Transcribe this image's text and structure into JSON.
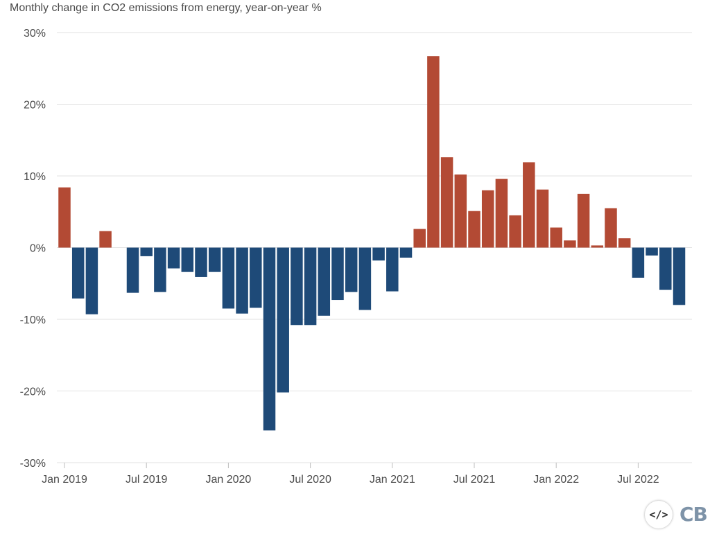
{
  "chart_data": {
    "type": "bar",
    "title": "Monthly change in CO2 emissions from energy, year-on-year %",
    "xlabel": "",
    "ylabel": "",
    "ylim": [
      -30,
      30
    ],
    "yticks": [
      30,
      20,
      10,
      0,
      -10,
      -20,
      -30
    ],
    "ytick_labels": [
      "30%",
      "20%",
      "10%",
      "0%",
      "-10%",
      "-20%",
      "-30%"
    ],
    "xtick_labels": [
      "Jan 2019",
      "Jul 2019",
      "Jan 2020",
      "Jul 2020",
      "Jan 2021",
      "Jul 2021",
      "Jan 2022",
      "Jul 2022"
    ],
    "xtick_months": [
      "2019-01",
      "2019-07",
      "2020-01",
      "2020-07",
      "2021-01",
      "2021-07",
      "2022-01",
      "2022-07"
    ],
    "categories": [
      "2019-01",
      "2019-02",
      "2019-03",
      "2019-04",
      "2019-05",
      "2019-06",
      "2019-07",
      "2019-08",
      "2019-09",
      "2019-10",
      "2019-11",
      "2019-12",
      "2020-01",
      "2020-02",
      "2020-03",
      "2020-04",
      "2020-05",
      "2020-06",
      "2020-07",
      "2020-08",
      "2020-09",
      "2020-10",
      "2020-11",
      "2020-12",
      "2021-01",
      "2021-02",
      "2021-03",
      "2021-04",
      "2021-05",
      "2021-06",
      "2021-07",
      "2021-08",
      "2021-09",
      "2021-10",
      "2021-11",
      "2021-12",
      "2022-01",
      "2022-02",
      "2022-03",
      "2022-04",
      "2022-05",
      "2022-06",
      "2022-07",
      "2022-08",
      "2022-09",
      "2022-10"
    ],
    "values": [
      8.4,
      -7.1,
      -9.3,
      2.3,
      0.0,
      -6.3,
      -1.2,
      -6.2,
      -2.9,
      -3.4,
      -4.1,
      -3.4,
      -8.5,
      -9.2,
      -8.4,
      -25.5,
      -20.2,
      -10.8,
      -10.8,
      -9.5,
      -7.3,
      -6.2,
      -8.7,
      -1.8,
      -6.1,
      -1.4,
      2.6,
      26.7,
      12.6,
      10.2,
      5.1,
      8.0,
      9.6,
      4.5,
      11.9,
      8.1,
      2.8,
      1.0,
      7.5,
      0.3,
      5.5,
      1.3,
      -4.2,
      -1.1,
      -5.9,
      -8.0
    ],
    "grid": true,
    "colors": {
      "positive": "#b34a34",
      "negative": "#1e4a78",
      "grid": "#e2e2e2",
      "axis_text": "#4a4a4a"
    }
  },
  "logos": {
    "embed_icon": "code-embed-icon",
    "brand": "CB"
  }
}
